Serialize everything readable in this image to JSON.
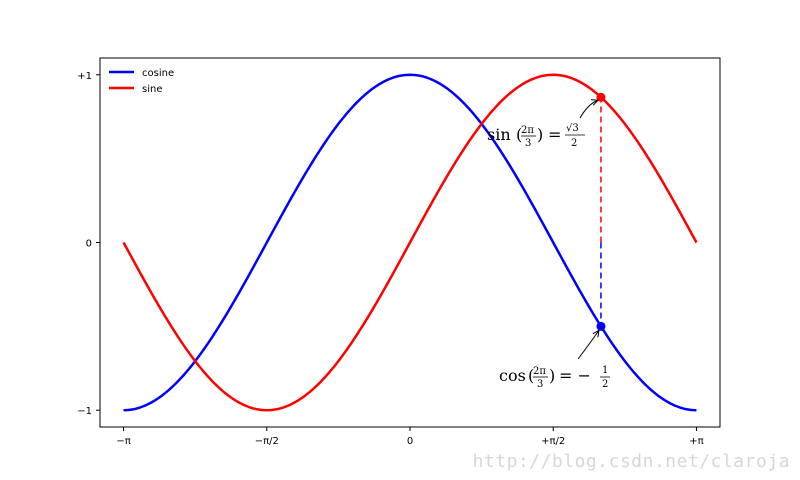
{
  "chart_data": {
    "type": "line",
    "title": "",
    "xlabel": "",
    "ylabel": "",
    "xlim": [
      -3.4,
      3.4
    ],
    "ylim": [
      -1.1,
      1.1
    ],
    "xticks": [
      {
        "value": -3.14159,
        "label": "−π"
      },
      {
        "value": -1.5708,
        "label": "−π/2"
      },
      {
        "value": 0,
        "label": "0"
      },
      {
        "value": 1.5708,
        "label": "+π/2"
      },
      {
        "value": 3.14159,
        "label": "+π"
      }
    ],
    "yticks": [
      {
        "value": -1,
        "label": "−1"
      },
      {
        "value": 0,
        "label": "0"
      },
      {
        "value": 1,
        "label": "+1"
      }
    ],
    "grid": false,
    "legend": {
      "placement": "upper-left"
    },
    "series": [
      {
        "name": "cosine",
        "color": "#0000ff",
        "function": "cos",
        "x_range": [
          -3.14159,
          3.14159
        ]
      },
      {
        "name": "sine",
        "color": "#ff0000",
        "function": "sin",
        "x_range": [
          -3.14159,
          3.14159
        ]
      }
    ],
    "markers": [
      {
        "x": 2.0944,
        "y": 0.866,
        "color": "#ff0000"
      },
      {
        "x": 2.0944,
        "y": -0.5,
        "color": "#0000ff"
      }
    ],
    "annotations": [
      {
        "id": "sin",
        "x": 2.0944,
        "y": 0.866,
        "text_func": "sin",
        "text_arg": "2π",
        "text_den": "3",
        "text_eq": "=",
        "text_val_num": "√3",
        "text_val_den": "2"
      },
      {
        "id": "cos",
        "x": 2.0944,
        "y": -0.5,
        "text_func": "cos",
        "text_arg": "2π",
        "text_den": "3",
        "text_eq": "= −",
        "text_val_num": "1",
        "text_val_den": "2"
      }
    ]
  },
  "watermark": "http://blog.csdn.net/claroja"
}
